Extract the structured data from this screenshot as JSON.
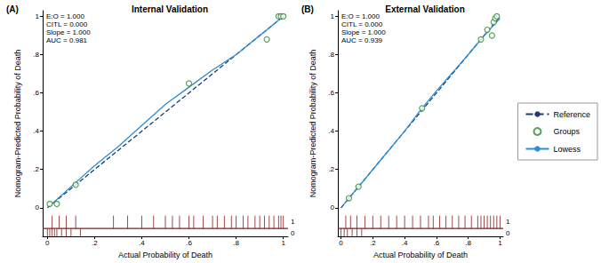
{
  "chart_data": [
    {
      "type": "scatter",
      "panel": "(A)",
      "title": "Internal Validation",
      "x_label": "Actual Probability of Death",
      "y_label": "Nomogram-Predicted Probability of Death",
      "annotations": [
        "E:O = 1.000",
        "CITL = 0.000",
        "Slope = 1.000",
        "AUC = 0.981"
      ],
      "xlim": [
        -0.02,
        1.02
      ],
      "ylim": [
        -0.15,
        1.03
      ],
      "xticks": [
        0,
        {
          "value": 0.2,
          "label": ".2"
        },
        {
          "value": 0.4,
          "label": ".4"
        },
        {
          "value": 0.6,
          "label": ".6"
        },
        {
          "value": 0.8,
          "label": ".8"
        },
        1
      ],
      "yticks": [
        0,
        {
          "value": 0.2,
          "label": ".2"
        },
        {
          "value": 0.4,
          "label": ".4"
        },
        {
          "value": 0.6,
          "label": ".6"
        },
        {
          "value": 0.8,
          "label": ".8"
        },
        1
      ],
      "legend": "right",
      "series": [
        {
          "name": "Reference",
          "type": "line",
          "color": "#1f3a6e",
          "line_style": "dashed",
          "marker": "none",
          "x": [
            0,
            1
          ],
          "values": [
            0,
            1
          ]
        },
        {
          "name": "Groups",
          "type": "scatter",
          "color": "#2e8b2e",
          "marker": "hollow_circle",
          "x": [
            0.01,
            0.04,
            0.12,
            0.6,
            0.93,
            0.98,
            0.99,
            1.0
          ],
          "values": [
            0.02,
            0.02,
            0.12,
            0.65,
            0.88,
            1.0,
            1.0,
            1.0
          ]
        },
        {
          "name": "Lowess",
          "type": "line",
          "color": "#2a8fd6",
          "line_style": "solid",
          "marker": "none",
          "x": [
            0.01,
            0.1,
            0.2,
            0.3,
            0.4,
            0.5,
            0.6,
            0.7,
            0.8,
            0.9,
            1.0
          ],
          "values": [
            0.01,
            0.11,
            0.22,
            0.32,
            0.43,
            0.54,
            0.63,
            0.72,
            0.8,
            0.9,
            1.0
          ]
        }
      ],
      "rug": [
        {
          "label": "1",
          "color": "#8b1a1a",
          "x": [
            0.02,
            0.05,
            0.08,
            0.12,
            0.28,
            0.34,
            0.4,
            0.45,
            0.5,
            0.53,
            0.56,
            0.6,
            0.62,
            0.66,
            0.7,
            0.72,
            0.75,
            0.78,
            0.8,
            0.83,
            0.85,
            0.88,
            0.9,
            0.92,
            0.94,
            0.96,
            0.98,
            0.99,
            1.0
          ]
        },
        {
          "label": "0",
          "color": "#8b1a1a",
          "x": [
            0.0,
            0.01,
            0.02,
            0.03,
            0.04,
            0.06,
            0.08,
            0.1,
            0.14
          ]
        }
      ]
    },
    {
      "type": "scatter",
      "panel": "(B)",
      "title": "External Validation",
      "x_label": "Actual Probability of Death",
      "y_label": "Nomogram-Predicted Probability of Death",
      "annotations": [
        "E:O = 1.000",
        "CITL = 0.000",
        "Slope = 1.000",
        "AUC = 0.939"
      ],
      "xlim": [
        -0.02,
        1.02
      ],
      "ylim": [
        -0.15,
        1.03
      ],
      "xticks": [
        0,
        {
          "value": 0.2,
          "label": ".2"
        },
        {
          "value": 0.4,
          "label": ".4"
        },
        {
          "value": 0.6,
          "label": ".6"
        },
        {
          "value": 0.8,
          "label": ".8"
        },
        1
      ],
      "yticks": [
        0,
        {
          "value": 0.2,
          "label": ".2"
        },
        {
          "value": 0.4,
          "label": ".4"
        },
        {
          "value": 0.6,
          "label": ".6"
        },
        {
          "value": 0.8,
          "label": ".8"
        },
        1
      ],
      "series": [
        {
          "name": "Reference",
          "type": "line",
          "color": "#1f3a6e",
          "line_style": "dashed",
          "marker": "none",
          "x": [
            0,
            1
          ],
          "values": [
            0,
            1
          ]
        },
        {
          "name": "Groups",
          "type": "scatter",
          "color": "#2e8b2e",
          "marker": "hollow_circle",
          "x": [
            0.05,
            0.11,
            0.51,
            0.88,
            0.92,
            0.95,
            0.96,
            0.97,
            0.98
          ],
          "values": [
            0.05,
            0.11,
            0.52,
            0.88,
            0.93,
            0.9,
            0.97,
            0.99,
            1.0
          ]
        },
        {
          "name": "Lowess",
          "type": "line",
          "color": "#2a8fd6",
          "line_style": "solid",
          "marker": "none",
          "x": [
            0.02,
            0.2,
            0.4,
            0.5,
            0.6,
            0.8,
            0.9,
            1.0
          ],
          "values": [
            0.02,
            0.2,
            0.4,
            0.51,
            0.61,
            0.8,
            0.9,
            0.99
          ]
        }
      ],
      "rug": [
        {
          "label": "1",
          "color": "#8b1a1a",
          "x": [
            0.03,
            0.06,
            0.1,
            0.15,
            0.2,
            0.25,
            0.3,
            0.35,
            0.4,
            0.45,
            0.5,
            0.55,
            0.58,
            0.62,
            0.66,
            0.7,
            0.74,
            0.78,
            0.82,
            0.86,
            0.88,
            0.9,
            0.92,
            0.94,
            0.96,
            0.98,
            1.0
          ]
        },
        {
          "label": "0",
          "color": "#8b1a1a",
          "x": [
            0.0,
            0.02,
            0.04,
            0.07,
            0.1,
            0.13
          ]
        }
      ]
    }
  ]
}
